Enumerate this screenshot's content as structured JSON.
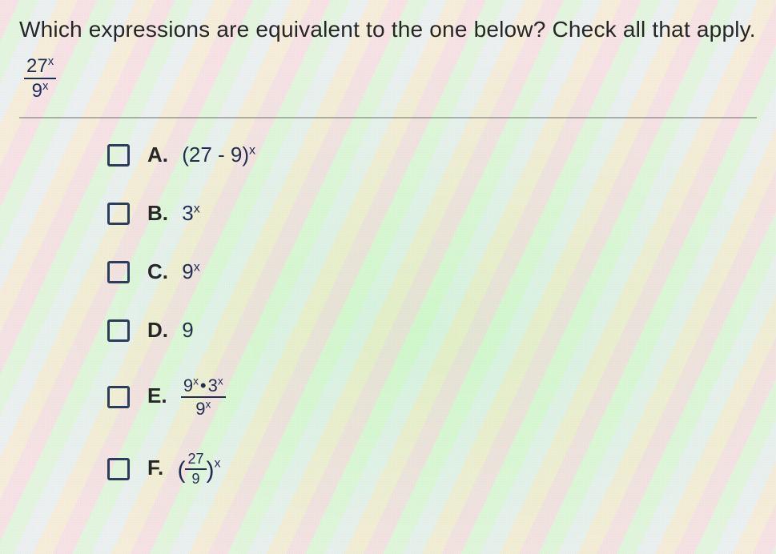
{
  "question": {
    "prompt": "Which expressions are equivalent to the one below? Check all that apply.",
    "expression": {
      "numerator_base": "27",
      "numerator_exp": "x",
      "denominator_base": "9",
      "denominator_exp": "x"
    }
  },
  "options": {
    "A": {
      "letter": "A.",
      "base_open": "(27 - 9)",
      "exp": "x"
    },
    "B": {
      "letter": "B.",
      "base": "3",
      "exp": "x"
    },
    "C": {
      "letter": "C.",
      "base": "9",
      "exp": "x"
    },
    "D": {
      "letter": "D.",
      "value": "9"
    },
    "E": {
      "letter": "E.",
      "n1_base": "9",
      "n1_exp": "x",
      "dot": "•",
      "n2_base": "3",
      "n2_exp": "x",
      "d_base": "9",
      "d_exp": "x"
    },
    "F": {
      "letter": "F.",
      "open": "(",
      "f_num": "27",
      "f_den": "9",
      "close": ")",
      "outer_exp": "x"
    }
  },
  "style": {
    "text_color": "#222222",
    "math_color": "#1a2a55",
    "checkbox_border": "#2a3a55",
    "rule_color": "rgba(120,120,120,0.55)",
    "question_fontsize": 28,
    "option_fontsize": 26,
    "checkbox_size": 28,
    "option_gap": 42
  }
}
